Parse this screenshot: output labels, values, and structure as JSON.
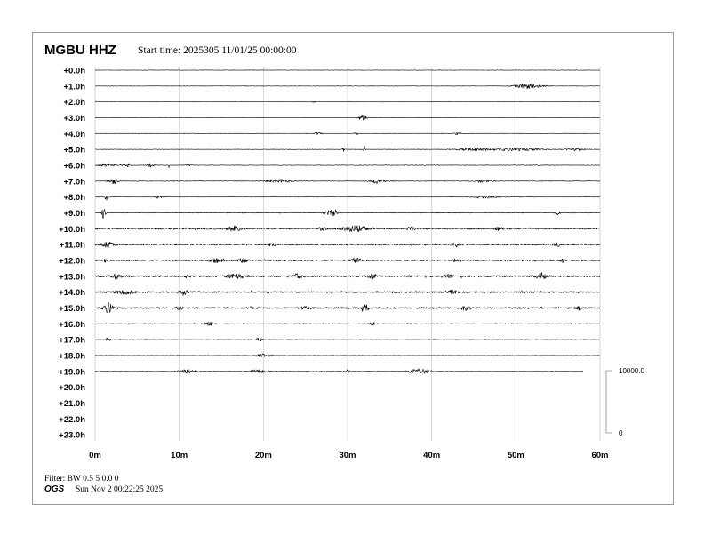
{
  "header": {
    "station": "MGBU HHZ",
    "start_time": "Start time: 2025305 11/01/25 00:00:00"
  },
  "footer": {
    "filter": "Filter: BW 0.5 5 0.0 0",
    "agency": "OGS",
    "generated": "Sun Nov  2 00:22:25 2025"
  },
  "chart_data": {
    "type": "line",
    "title": "MGBU HHZ",
    "xlabel": "",
    "ylabel": "",
    "x_ticks": [
      "0m",
      "10m",
      "20m",
      "30m",
      "40m",
      "50m",
      "60m"
    ],
    "xlim": [
      0,
      60
    ],
    "grid": "vertical",
    "row_labels": [
      "+0.0h",
      "+1.0h",
      "+2.0h",
      "+3.0h",
      "+4.0h",
      "+5.0h",
      "+6.0h",
      "+7.0h",
      "+8.0h",
      "+9.0h",
      "+10.0h",
      "+11.0h",
      "+12.0h",
      "+13.0h",
      "+14.0h",
      "+15.0h",
      "+16.0h",
      "+17.0h",
      "+18.0h",
      "+19.0h",
      "+20.0h",
      "+21.0h",
      "+22.0h",
      "+23.0h"
    ],
    "scale_bar": {
      "top_label": "10000.0",
      "bottom_label": "0",
      "units_per_bar": 10000
    },
    "trace_color": "#000000",
    "grid_color": "#cccccc",
    "traces": [
      {
        "row": 0,
        "noise": 0.25,
        "end_min": 60,
        "events": []
      },
      {
        "row": 1,
        "noise": 0.25,
        "end_min": 60,
        "events": [
          [
            51.5,
            3,
            1.5
          ]
        ]
      },
      {
        "row": 2,
        "noise": 0.2,
        "end_min": 60,
        "events": [
          [
            26,
            1,
            0.2
          ]
        ]
      },
      {
        "row": 3,
        "noise": 0.2,
        "end_min": 60,
        "events": [
          [
            31.8,
            5,
            0.4
          ]
        ]
      },
      {
        "row": 4,
        "noise": 0.25,
        "end_min": 60,
        "events": [
          [
            26.5,
            2,
            0.3
          ],
          [
            31,
            2,
            0.2
          ],
          [
            43,
            1.5,
            0.4
          ]
        ]
      },
      {
        "row": 5,
        "noise": 0.3,
        "end_min": 60,
        "events": [
          [
            29.5,
            3,
            0.1
          ],
          [
            32,
            4,
            0.1
          ],
          [
            45,
            1.5,
            2
          ],
          [
            50,
            1.5,
            3
          ],
          [
            57,
            1.5,
            1
          ]
        ]
      },
      {
        "row": 6,
        "noise": 0.35,
        "end_min": 60,
        "events": [
          [
            1.5,
            1.5,
            1.5
          ],
          [
            4,
            2,
            0.3
          ],
          [
            6.5,
            2,
            0.4
          ],
          [
            8.8,
            3,
            0.1
          ],
          [
            11,
            1.5,
            0.3
          ]
        ]
      },
      {
        "row": 7,
        "noise": 0.35,
        "end_min": 60,
        "events": [
          [
            2.2,
            3,
            0.5
          ],
          [
            21.8,
            2,
            1.5
          ],
          [
            33.5,
            2.5,
            1
          ],
          [
            46,
            1.5,
            1
          ]
        ]
      },
      {
        "row": 8,
        "noise": 0.3,
        "end_min": 60,
        "events": [
          [
            1.3,
            4,
            0.2
          ],
          [
            7.5,
            1.5,
            0.4
          ],
          [
            46.5,
            1.5,
            1.5
          ]
        ]
      },
      {
        "row": 9,
        "noise": 0.45,
        "end_min": 60,
        "events": [
          [
            1.0,
            8,
            0.2
          ],
          [
            28.2,
            4,
            0.7
          ],
          [
            55,
            2,
            0.3
          ]
        ]
      },
      {
        "row": 10,
        "noise": 0.9,
        "end_min": 60,
        "events": [
          [
            16.5,
            3,
            0.8
          ],
          [
            27,
            2.5,
            0.5
          ],
          [
            31,
            3.5,
            1.5
          ],
          [
            37.5,
            2,
            0.5
          ],
          [
            48,
            2,
            0.5
          ]
        ]
      },
      {
        "row": 11,
        "noise": 0.9,
        "end_min": 60,
        "events": [
          [
            1.5,
            3,
            0.6
          ],
          [
            21,
            2,
            0.5
          ],
          [
            42.8,
            3,
            0.4
          ],
          [
            55,
            2,
            0.4
          ]
        ]
      },
      {
        "row": 12,
        "noise": 0.8,
        "end_min": 60,
        "events": [
          [
            1.2,
            3,
            0.1
          ],
          [
            14.5,
            2.5,
            0.8
          ],
          [
            17.5,
            2.5,
            0.6
          ],
          [
            31,
            2.5,
            0.6
          ],
          [
            43,
            2,
            0.5
          ],
          [
            55.5,
            2.5,
            0.3
          ]
        ]
      },
      {
        "row": 13,
        "noise": 1.1,
        "end_min": 60,
        "events": [
          [
            2.5,
            2.5,
            0.5
          ],
          [
            11,
            3.5,
            0.2
          ],
          [
            16.5,
            2.5,
            1
          ],
          [
            24,
            2.5,
            0.5
          ],
          [
            33,
            2.5,
            0.5
          ],
          [
            42,
            2.5,
            0.5
          ],
          [
            53,
            4,
            0.5
          ]
        ]
      },
      {
        "row": 14,
        "noise": 1.0,
        "end_min": 60,
        "events": [
          [
            3.5,
            2.5,
            1
          ],
          [
            10.5,
            3,
            0.5
          ],
          [
            42.5,
            2,
            0.5
          ]
        ]
      },
      {
        "row": 15,
        "noise": 1.0,
        "end_min": 60,
        "events": [
          [
            1.5,
            6,
            0.5
          ],
          [
            10,
            2.5,
            0.3
          ],
          [
            25,
            2.5,
            0.5
          ],
          [
            32,
            7,
            0.4
          ],
          [
            44,
            2.5,
            0.5
          ],
          [
            57.5,
            2.5,
            0.3
          ]
        ]
      },
      {
        "row": 16,
        "noise": 0.5,
        "end_min": 60,
        "events": [
          [
            13.5,
            2.5,
            0.5
          ],
          [
            33,
            2,
            0.4
          ]
        ]
      },
      {
        "row": 17,
        "noise": 0.3,
        "end_min": 60,
        "events": [
          [
            1.5,
            2,
            0.3
          ],
          [
            19.5,
            2,
            0.4
          ]
        ]
      },
      {
        "row": 18,
        "noise": 0.25,
        "end_min": 60,
        "events": [
          [
            20,
            2,
            0.8
          ]
        ]
      },
      {
        "row": 19,
        "noise": 0.35,
        "end_min": 58,
        "events": [
          [
            11,
            2,
            1
          ],
          [
            19.5,
            2,
            1
          ],
          [
            30,
            2,
            0.2
          ],
          [
            38.5,
            3.5,
            1.2
          ]
        ]
      }
    ]
  }
}
